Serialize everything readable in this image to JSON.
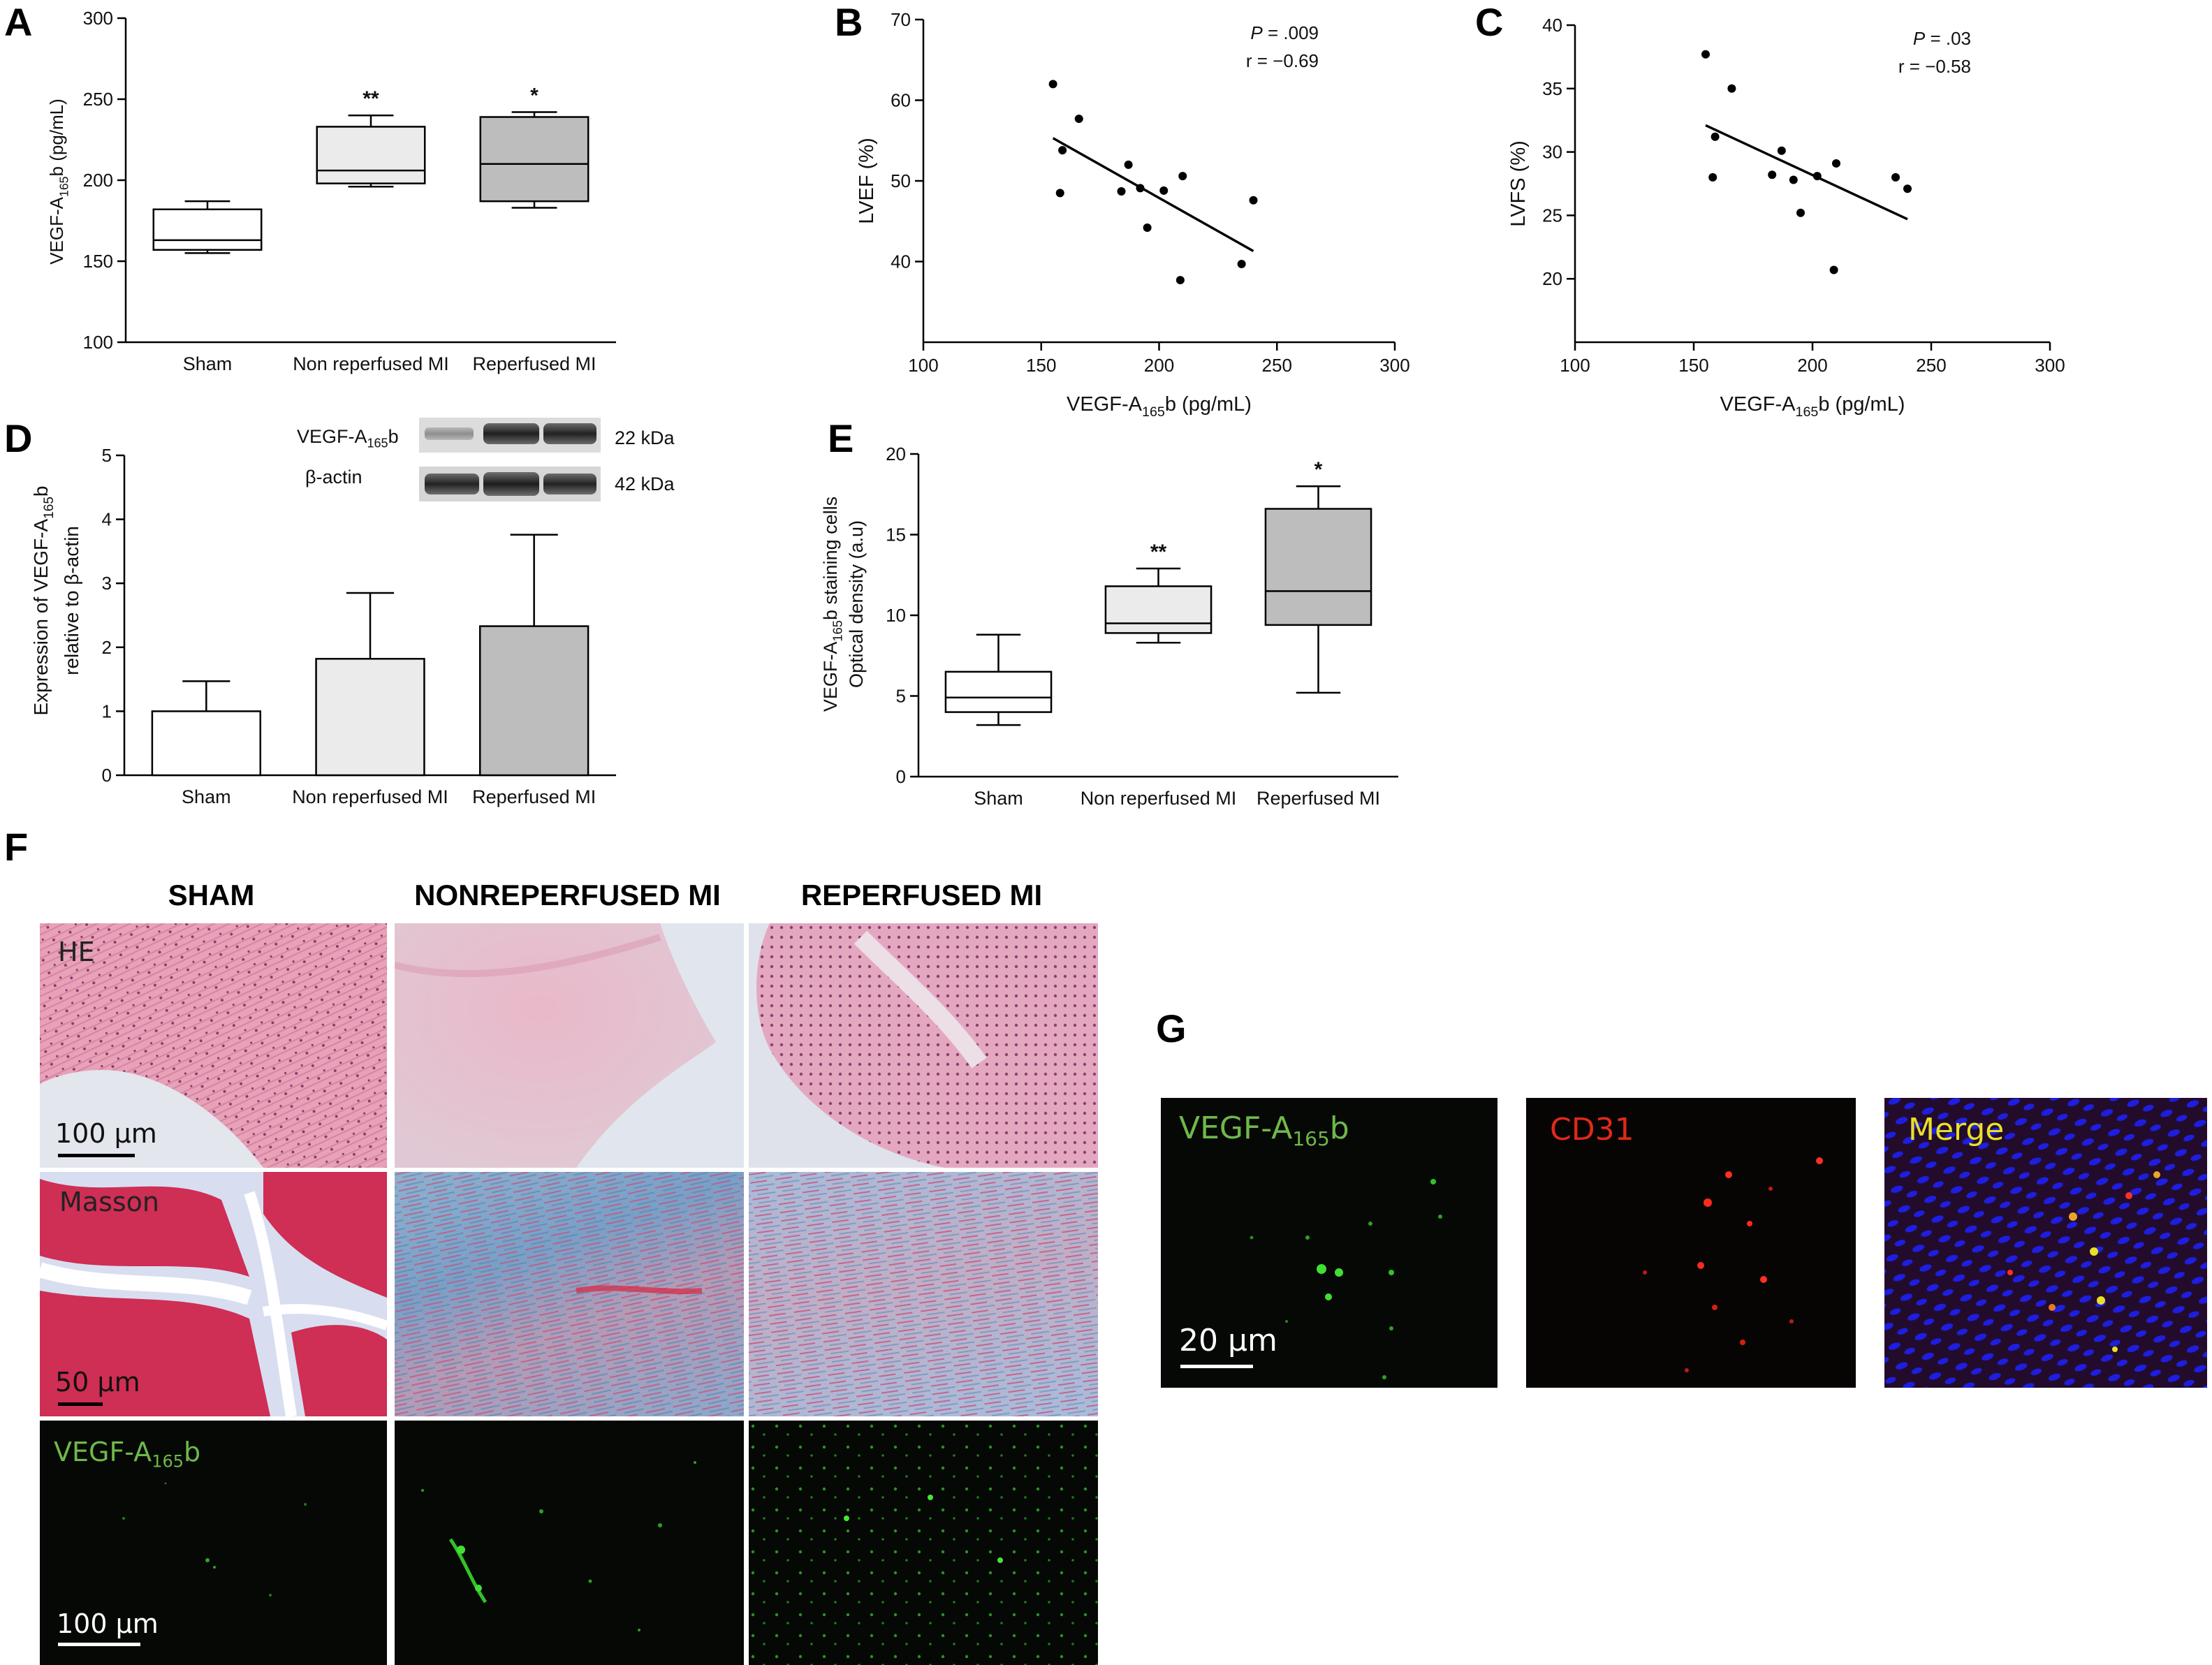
{
  "panels": {
    "A": {
      "label": "A"
    },
    "B": {
      "label": "B"
    },
    "C": {
      "label": "C"
    },
    "D": {
      "label": "D"
    },
    "E": {
      "label": "E"
    },
    "F": {
      "label": "F"
    },
    "G": {
      "label": "G"
    }
  },
  "chart_data": [
    {
      "id": "A",
      "type": "box",
      "ylabel_main": "VEGF-A",
      "ylabel_sub": "165",
      "ylabel_tail": "b (pg/mL)",
      "ylim": [
        100,
        300
      ],
      "yticks": [
        100,
        150,
        200,
        250,
        300
      ],
      "categories": [
        "Sham",
        "Non reperfused MI",
        "Reperfused MI"
      ],
      "boxes": [
        {
          "min": 155,
          "q1": 157,
          "median": 163,
          "q3": 182,
          "max": 187,
          "fill": "#ffffff",
          "sig": ""
        },
        {
          "min": 196,
          "q1": 198,
          "median": 206,
          "q3": 233,
          "max": 240,
          "fill": "#ebebeb",
          "sig": "**"
        },
        {
          "min": 183,
          "q1": 187,
          "median": 210,
          "q3": 239,
          "max": 242,
          "fill": "#bdbdbd",
          "sig": "*"
        }
      ]
    },
    {
      "id": "B",
      "type": "scatter",
      "xlabel_main": "VEGF-A",
      "xlabel_sub": "165",
      "xlabel_tail": "b (pg/mL)",
      "ylabel": "LVEF  (%)",
      "xlim": [
        100,
        300
      ],
      "ylim": [
        30,
        70
      ],
      "xticks": [
        100,
        150,
        200,
        250,
        300
      ],
      "yticks": [
        40,
        50,
        60,
        70
      ],
      "annotation_p": ".009",
      "annotation_r": "r = −0.69",
      "points": [
        [
          155,
          62
        ],
        [
          158,
          48.5
        ],
        [
          159,
          53.8
        ],
        [
          166,
          57.7
        ],
        [
          184,
          48.7
        ],
        [
          187,
          52
        ],
        [
          192,
          49.1
        ],
        [
          195,
          44.2
        ],
        [
          202,
          48.8
        ],
        [
          209,
          37.7
        ],
        [
          210,
          50.6
        ],
        [
          235,
          39.7
        ],
        [
          240,
          47.6
        ]
      ],
      "fit": [
        [
          155,
          55.3
        ],
        [
          240,
          41.3
        ]
      ]
    },
    {
      "id": "C",
      "type": "scatter",
      "xlabel_main": "VEGF-A",
      "xlabel_sub": "165",
      "xlabel_tail": "b (pg/mL)",
      "ylabel": "LVFS  (%)",
      "xlim": [
        100,
        300
      ],
      "ylim": [
        15,
        40
      ],
      "xticks": [
        100,
        150,
        200,
        250,
        300
      ],
      "yticks": [
        20,
        25,
        30,
        35,
        40
      ],
      "annotation_p": ".03",
      "annotation_r": "r = −0.58",
      "points": [
        [
          155,
          37.7
        ],
        [
          158,
          28
        ],
        [
          159,
          31.2
        ],
        [
          166,
          35
        ],
        [
          183,
          28.2
        ],
        [
          187,
          30.1
        ],
        [
          192,
          27.8
        ],
        [
          195,
          25.2
        ],
        [
          202,
          28.1
        ],
        [
          209,
          20.7
        ],
        [
          210,
          29.1
        ],
        [
          235,
          28
        ],
        [
          240,
          27.1
        ]
      ],
      "fit": [
        [
          155,
          32.1
        ],
        [
          240,
          24.7
        ]
      ]
    },
    {
      "id": "D",
      "type": "bar",
      "ylabel_line1_main": "Expression of VEGF-A",
      "ylabel_line1_sub": "165",
      "ylabel_line1_tail": "b",
      "ylabel_line2": "relative to β-actin",
      "ylim": [
        0,
        5
      ],
      "yticks": [
        0,
        1,
        2,
        3,
        4,
        5
      ],
      "categories": [
        "Sham",
        "Non reperfused MI",
        "Reperfused MI"
      ],
      "values": [
        1.0,
        1.82,
        2.33
      ],
      "errors": [
        0.47,
        1.03,
        1.43
      ],
      "fills": [
        "#ffffff",
        "#ebebeb",
        "#bdbdbd"
      ],
      "blot": {
        "row1_label_main": "VEGF-A",
        "row1_label_sub": "165",
        "row1_label_tail": "b",
        "row1_size": "22 kDa",
        "row2_label": "β-actin",
        "row2_size": "42 kDa"
      }
    },
    {
      "id": "E",
      "type": "box",
      "ylabel_line1_main": "VEGF-A",
      "ylabel_line1_sub": "165",
      "ylabel_line1_tail": "b staining cells",
      "ylabel_line2": "Optical density (a.u)",
      "ylim": [
        0,
        20
      ],
      "yticks": [
        0,
        5,
        10,
        15,
        20
      ],
      "categories": [
        "Sham",
        "Non reperfused MI",
        "Reperfused MI"
      ],
      "boxes": [
        {
          "min": 3.2,
          "q1": 4.0,
          "median": 4.9,
          "q3": 6.5,
          "max": 8.8,
          "fill": "#ffffff",
          "sig": ""
        },
        {
          "min": 8.3,
          "q1": 8.9,
          "median": 9.5,
          "q3": 11.8,
          "max": 12.9,
          "fill": "#ebebeb",
          "sig": "**"
        },
        {
          "min": 5.2,
          "q1": 9.4,
          "median": 11.5,
          "q3": 16.6,
          "max": 18.0,
          "fill": "#bdbdbd",
          "sig": "*"
        }
      ]
    }
  ],
  "panelF": {
    "col_titles": [
      "SHAM",
      "NONREPERFUSED MI",
      "REPERFUSED MI"
    ],
    "row_labels": {
      "he": "HE",
      "masson": "Masson",
      "vegf_main": "VEGF-A",
      "vegf_sub": "165",
      "vegf_tail": "b"
    },
    "scale_bars": {
      "he": "100 μm",
      "masson": "50 μm",
      "vegf": "100 μm"
    }
  },
  "panelG": {
    "labels": {
      "vegf_main": "VEGF-A",
      "vegf_sub": "165",
      "vegf_tail": "b",
      "cd31": "CD31",
      "merge": "Merge"
    },
    "scale_bar": "20 μm"
  },
  "colors": {
    "he_pink": "#e7a5bd",
    "he_light": "#ead9e2",
    "masson_red": "#cf2e55",
    "masson_blue": "#6f8fb5",
    "fluor_green": "#39d12e",
    "fluor_red": "#ff2a1a",
    "dapi_blue": "#1b1bd8",
    "merge_yellow": "#e8e025"
  }
}
